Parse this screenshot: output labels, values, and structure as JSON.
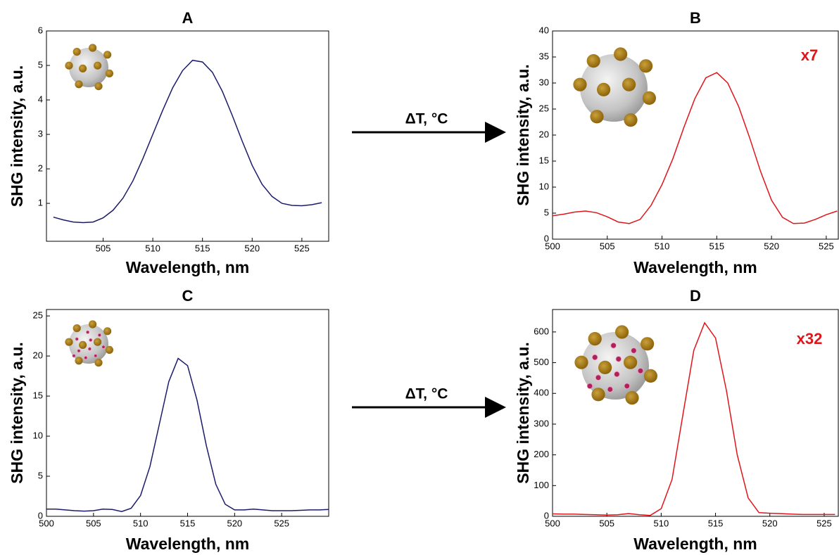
{
  "chart_data": [
    {
      "type": "line",
      "title": "A",
      "x_label": "Wavelength, nm",
      "y_label": "SHG intensity, a.u.",
      "color": "#1b1b6b",
      "x": [
        500,
        501,
        502,
        503,
        504,
        505,
        506,
        507,
        508,
        509,
        510,
        511,
        512,
        513,
        514,
        515,
        516,
        517,
        518,
        519,
        520,
        521,
        522,
        523,
        524,
        525,
        526,
        527
      ],
      "values": [
        0.6,
        0.52,
        0.46,
        0.44,
        0.46,
        0.58,
        0.8,
        1.15,
        1.65,
        2.3,
        3.0,
        3.7,
        4.35,
        4.85,
        5.15,
        5.1,
        4.8,
        4.25,
        3.55,
        2.8,
        2.1,
        1.55,
        1.2,
        1.0,
        0.94,
        0.93,
        0.96,
        1.02
      ],
      "xlim": [
        499.3,
        527.7
      ],
      "ylim": [
        -0.1,
        6
      ],
      "xticks": [
        505,
        510,
        515,
        520,
        525
      ],
      "yticks": [
        1,
        2,
        3,
        4,
        5,
        6
      ]
    },
    {
      "type": "line",
      "title": "B",
      "x_label": "Wavelength, nm",
      "y_label": "SHG intensity, a.u.",
      "color": "#e0151b",
      "annotation": "x7",
      "x": [
        500,
        501,
        502,
        503,
        504,
        505,
        506,
        507,
        508,
        509,
        510,
        511,
        512,
        513,
        514,
        515,
        516,
        517,
        518,
        519,
        520,
        521,
        522,
        523,
        524,
        525,
        526
      ],
      "values": [
        4.5,
        4.8,
        5.2,
        5.4,
        5.1,
        4.3,
        3.3,
        3.0,
        3.8,
        6.5,
        10.5,
        15.5,
        21.5,
        27,
        31,
        32,
        30,
        25.5,
        19.5,
        13,
        7.5,
        4.2,
        3.0,
        3.1,
        3.8,
        4.7,
        5.4
      ],
      "xlim": [
        500,
        526.1
      ],
      "ylim": [
        0,
        40
      ],
      "xticks": [
        500,
        505,
        510,
        515,
        520,
        525
      ],
      "yticks": [
        0,
        5,
        10,
        15,
        20,
        25,
        30,
        35,
        40
      ]
    },
    {
      "type": "line",
      "title": "C",
      "x_label": "Wavelength, nm",
      "y_label": "SHG intensity, a.u.",
      "color": "#1b1b6b",
      "x": [
        500,
        501,
        502,
        503,
        504,
        505,
        506,
        507,
        508,
        509,
        510,
        511,
        512,
        513,
        514,
        515,
        516,
        517,
        518,
        519,
        520,
        521,
        522,
        523,
        524,
        525,
        526,
        527,
        528,
        529,
        530
      ],
      "values": [
        0.9,
        0.9,
        0.8,
        0.7,
        0.65,
        0.7,
        0.9,
        0.85,
        0.6,
        1.0,
        2.6,
        6.2,
        11.5,
        16.8,
        19.7,
        18.8,
        14.5,
        8.8,
        4.0,
        1.5,
        0.8,
        0.8,
        0.9,
        0.8,
        0.7,
        0.7,
        0.7,
        0.75,
        0.8,
        0.8,
        0.85
      ],
      "xlim": [
        500,
        530
      ],
      "ylim": [
        0,
        25.8
      ],
      "xticks": [
        500,
        505,
        510,
        515,
        520,
        525
      ],
      "yticks": [
        0,
        5,
        10,
        15,
        20,
        25
      ]
    },
    {
      "type": "line",
      "title": "D",
      "x_label": "Wavelength, nm",
      "y_label": "SHG intensity, a.u.",
      "color": "#e0151b",
      "annotation": "x32",
      "x": [
        500,
        501,
        502,
        503,
        504,
        505,
        506,
        507,
        508,
        509,
        510,
        511,
        512,
        513,
        514,
        515,
        516,
        517,
        518,
        519,
        520,
        521,
        522,
        523,
        524,
        525,
        526
      ],
      "values": [
        8,
        7,
        7,
        6,
        5,
        4,
        5,
        9,
        5,
        3,
        25,
        120,
        330,
        540,
        630,
        580,
        410,
        200,
        60,
        12,
        10,
        9,
        7,
        6,
        6,
        6,
        6
      ],
      "xlim": [
        500,
        526.3
      ],
      "ylim": [
        0,
        673
      ],
      "xticks": [
        500,
        505,
        510,
        515,
        520,
        525
      ],
      "yticks": [
        0,
        100,
        200,
        300,
        400,
        500,
        600
      ]
    }
  ],
  "arrows": [
    "ΔT, °C",
    "ΔT, °C"
  ]
}
